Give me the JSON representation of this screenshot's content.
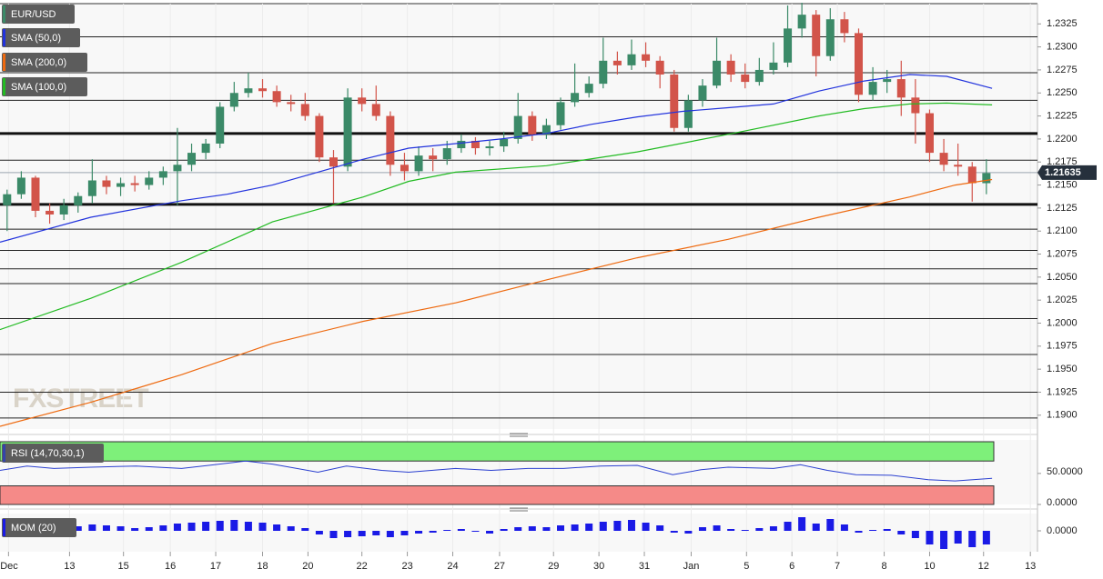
{
  "chart_data": {
    "type": "candlestick",
    "title": "EUR/USD",
    "watermark": "FXSTREET",
    "xlim": [
      -0.5,
      72.6
    ],
    "xticks": [
      {
        "value": 0.1,
        "label": "Dec"
      },
      {
        "value": 4.4,
        "label": "13"
      },
      {
        "value": 8.2,
        "label": "15"
      },
      {
        "value": 11.5,
        "label": "16"
      },
      {
        "value": 14.7,
        "label": "17"
      },
      {
        "value": 18.0,
        "label": "18"
      },
      {
        "value": 21.2,
        "label": "20"
      },
      {
        "value": 25.0,
        "label": "22"
      },
      {
        "value": 28.2,
        "label": "23"
      },
      {
        "value": 31.4,
        "label": "24"
      },
      {
        "value": 34.7,
        "label": "27"
      },
      {
        "value": 38.5,
        "label": "29"
      },
      {
        "value": 41.7,
        "label": "30"
      },
      {
        "value": 44.9,
        "label": "31"
      },
      {
        "value": 48.2,
        "label": "Jan"
      },
      {
        "value": 52.1,
        "label": "5"
      },
      {
        "value": 55.3,
        "label": "6"
      },
      {
        "value": 58.5,
        "label": "7"
      },
      {
        "value": 61.8,
        "label": "8"
      },
      {
        "value": 65.0,
        "label": "10"
      },
      {
        "value": 68.8,
        "label": "12"
      },
      {
        "value": 72.1,
        "label": "13"
      }
    ],
    "ylim": [
      1.1885,
      1.2347
    ],
    "yticks": [
      1.2325,
      {
        "value": 1.23,
        "label": "1.2300"
      },
      1.2275,
      {
        "value": 1.225,
        "label": "1.2250"
      },
      1.2225,
      {
        "value": 1.22,
        "label": "1.2200"
      },
      1.2175,
      {
        "value": 1.215,
        "label": "1.2150"
      },
      1.2125,
      {
        "value": 1.21,
        "label": "1.2100"
      },
      1.2075,
      {
        "value": 1.205,
        "label": "1.2050"
      },
      1.2025,
      {
        "value": 1.2,
        "label": "1.2000"
      },
      1.1975,
      {
        "value": 1.195,
        "label": "1.1950"
      },
      1.1925,
      {
        "value": 1.19,
        "label": "1.1900"
      }
    ],
    "up_color": "#3b8a68",
    "down_color": "#d2544a",
    "candles": [
      [
        1.2128,
        1.2145,
        1.21,
        1.214
      ],
      [
        1.214,
        1.2165,
        1.2135,
        1.2158
      ],
      [
        1.2158,
        1.216,
        1.2115,
        1.2122
      ],
      [
        1.2122,
        1.213,
        1.2108,
        1.2118
      ],
      [
        1.2118,
        1.2135,
        1.2112,
        1.2128
      ],
      [
        1.2128,
        1.2142,
        1.212,
        1.2138
      ],
      [
        1.2138,
        1.2178,
        1.213,
        1.2155
      ],
      [
        1.2155,
        1.216,
        1.214,
        1.2148
      ],
      [
        1.2148,
        1.2158,
        1.2138,
        1.2152
      ],
      [
        1.2152,
        1.216,
        1.2143,
        1.215
      ],
      [
        1.215,
        1.2165,
        1.2145,
        1.2158
      ],
      [
        1.2158,
        1.217,
        1.215,
        1.2165
      ],
      [
        1.2165,
        1.2212,
        1.2128,
        1.2172
      ],
      [
        1.2172,
        1.2195,
        1.2165,
        1.2185
      ],
      [
        1.2185,
        1.22,
        1.2178,
        1.2195
      ],
      [
        1.2195,
        1.224,
        1.219,
        1.2235
      ],
      [
        1.2235,
        1.2262,
        1.223,
        1.225
      ],
      [
        1.225,
        1.2272,
        1.2245,
        1.2255
      ],
      [
        1.2255,
        1.2265,
        1.2245,
        1.2252
      ],
      [
        1.2252,
        1.2258,
        1.2235,
        1.224
      ],
      [
        1.224,
        1.2248,
        1.223,
        1.2238
      ],
      [
        1.2238,
        1.225,
        1.222,
        1.2225
      ],
      [
        1.2225,
        1.2228,
        1.2175,
        1.218
      ],
      [
        1.218,
        1.2188,
        1.213,
        1.217
      ],
      [
        1.217,
        1.2255,
        1.2165,
        1.2245
      ],
      [
        1.2245,
        1.2255,
        1.223,
        1.2238
      ],
      [
        1.2238,
        1.2258,
        1.222,
        1.2225
      ],
      [
        1.2225,
        1.223,
        1.216,
        1.2172
      ],
      [
        1.2172,
        1.2185,
        1.2155,
        1.2165
      ],
      [
        1.2165,
        1.2192,
        1.216,
        1.2182
      ],
      [
        1.2182,
        1.219,
        1.2165,
        1.2178
      ],
      [
        1.2178,
        1.2198,
        1.2172,
        1.219
      ],
      [
        1.219,
        1.2205,
        1.2185,
        1.2198
      ],
      [
        1.2198,
        1.2202,
        1.2183,
        1.219
      ],
      [
        1.219,
        1.2198,
        1.2182,
        1.2192
      ],
      [
        1.2192,
        1.2208,
        1.2186,
        1.22
      ],
      [
        1.22,
        1.225,
        1.2195,
        1.2225
      ],
      [
        1.2225,
        1.223,
        1.2198,
        1.2205
      ],
      [
        1.2205,
        1.2222,
        1.22,
        1.2215
      ],
      [
        1.2215,
        1.2245,
        1.221,
        1.224
      ],
      [
        1.224,
        1.2282,
        1.2235,
        1.225
      ],
      [
        1.225,
        1.2268,
        1.2245,
        1.226
      ],
      [
        1.226,
        1.231,
        1.2255,
        1.2285
      ],
      [
        1.2285,
        1.2295,
        1.227,
        1.228
      ],
      [
        1.228,
        1.2308,
        1.2275,
        1.2292
      ],
      [
        1.2292,
        1.2305,
        1.2278,
        1.2285
      ],
      [
        1.2285,
        1.229,
        1.2255,
        1.227
      ],
      [
        1.227,
        1.2275,
        1.2208,
        1.2212
      ],
      [
        1.2212,
        1.2248,
        1.2208,
        1.2242
      ],
      [
        1.2242,
        1.2265,
        1.2235,
        1.2258
      ],
      [
        1.2258,
        1.231,
        1.2255,
        1.2285
      ],
      [
        1.2285,
        1.2292,
        1.2262,
        1.227
      ],
      [
        1.227,
        1.2282,
        1.2255,
        1.2262
      ],
      [
        1.2262,
        1.2288,
        1.2258,
        1.2275
      ],
      [
        1.2275,
        1.2305,
        1.227,
        1.2283
      ],
      [
        1.2283,
        1.2345,
        1.2278,
        1.232
      ],
      [
        1.232,
        1.2348,
        1.231,
        1.2335
      ],
      [
        1.2335,
        1.234,
        1.2268,
        1.229
      ],
      [
        1.229,
        1.2342,
        1.2285,
        1.233
      ],
      [
        1.233,
        1.2338,
        1.2305,
        1.2315
      ],
      [
        1.2315,
        1.232,
        1.224,
        1.2248
      ],
      [
        1.2248,
        1.2278,
        1.2242,
        1.2262
      ],
      [
        1.2262,
        1.2275,
        1.225,
        1.2265
      ],
      [
        1.2265,
        1.2285,
        1.2225,
        1.2245
      ],
      [
        1.2245,
        1.2265,
        1.2195,
        1.2228
      ],
      [
        1.2228,
        1.2232,
        1.2175,
        1.2185
      ],
      [
        1.2185,
        1.22,
        1.2165,
        1.2172
      ],
      [
        1.2172,
        1.2195,
        1.216,
        1.217
      ],
      [
        1.217,
        1.2175,
        1.2132,
        1.2152
      ],
      [
        1.2152,
        1.2178,
        1.214,
        1.2163
      ]
    ],
    "last": 1.21635,
    "levels": [
      1.2311,
      1.2272,
      1.2242,
      1.2177,
      1.2102,
      1.2079,
      1.2059,
      1.2043,
      1.2005,
      1.1966,
      1.1925,
      1.1897
    ],
    "strong_levels": [
      1.2206,
      1.2129
    ],
    "series": [
      {
        "name": "SMA (50,0)",
        "color": "#2233dd",
        "x": [
          -0.5,
          5.9,
          12.3,
          15.5,
          18.7,
          21.9,
          25.1,
          28.3,
          31.6,
          34.8,
          38,
          41.2,
          44.4,
          47.6,
          50.8,
          54,
          57.2,
          60.4,
          63.6,
          66.2,
          69.4
        ],
        "values": [
          1.2088,
          1.2115,
          1.2133,
          1.214,
          1.215,
          1.2164,
          1.2178,
          1.219,
          1.2195,
          1.22,
          1.2206,
          1.2216,
          1.2224,
          1.223,
          1.2234,
          1.2238,
          1.2252,
          1.2263,
          1.227,
          1.2268,
          1.2255
        ]
      },
      {
        "name": "SMA (200,0)",
        "color": "#ee6a10",
        "x": [
          -0.5,
          5.9,
          12.3,
          18.7,
          25.1,
          31.6,
          38,
          44.4,
          50.8,
          57.2,
          63.6,
          66.8,
          69.4
        ],
        "values": [
          1.1888,
          1.1914,
          1.1944,
          1.1978,
          1.2002,
          1.2022,
          1.2047,
          1.2071,
          1.2091,
          1.2115,
          1.2137,
          1.215,
          1.2156
        ]
      },
      {
        "name": "SMA (100,0)",
        "color": "#22bb22",
        "x": [
          -0.5,
          5.9,
          12.3,
          18.7,
          25.1,
          28.3,
          31.6,
          38,
          44.4,
          50.8,
          57.2,
          60.4,
          63.6,
          66.2,
          69.4
        ],
        "values": [
          1.1993,
          1.2027,
          1.2066,
          1.211,
          1.2137,
          1.2154,
          1.2164,
          1.2171,
          1.2186,
          1.2205,
          1.2225,
          1.2233,
          1.2238,
          1.2239,
          1.2237
        ]
      }
    ],
    "rsi": {
      "name": "RSI (14,70,30,1)",
      "color": "#2a3fd0",
      "ylim": [
        0,
        104
      ],
      "yticks": [
        {
          "value": 50,
          "label": "50.0000"
        },
        {
          "value": 0,
          "label": "0.0000"
        }
      ],
      "bands": [
        30,
        70
      ],
      "x": [
        -0.5,
        1.4,
        3.3,
        5.9,
        9.1,
        12.3,
        14.2,
        16.8,
        18.7,
        21.9,
        23.9,
        26.4,
        28.3,
        31.6,
        34.1,
        36.7,
        39.2,
        41.8,
        44.4,
        46.9,
        48.9,
        50.8,
        54,
        55.9,
        57.8,
        59.8,
        62.3,
        64.9,
        66.8,
        69.4
      ],
      "values": [
        55,
        62,
        58,
        60,
        62,
        58,
        63,
        70,
        65,
        52,
        62,
        55,
        52,
        58,
        55,
        58,
        58,
        62,
        63,
        48,
        56,
        60,
        58,
        64,
        55,
        48,
        47,
        40,
        38,
        42
      ]
    },
    "mom": {
      "name": "MOM (20)",
      "color": "#1a1ae6",
      "ylim": [
        -0.0046,
        0.0038
      ],
      "yticks": [
        {
          "value": 0,
          "label": "0.0000"
        }
      ],
      "values": [
        0.0004,
        0.0008,
        0.0002,
        -0.0004,
        0.0006,
        0.001,
        0.0014,
        0.0012,
        0.001,
        0.0006,
        0.0008,
        0.0012,
        0.0016,
        0.0018,
        0.002,
        0.0022,
        0.0024,
        0.002,
        0.0018,
        0.0014,
        0.001,
        0.0006,
        -0.0008,
        -0.0016,
        -0.0014,
        -0.0012,
        -0.001,
        -0.0014,
        -0.001,
        -0.0006,
        -0.0004,
        0.0002,
        0.0004,
        -0.0002,
        -0.0006,
        0.0004,
        0.0008,
        0.001,
        0.0008,
        0.0012,
        0.0014,
        0.0016,
        0.002,
        0.0022,
        0.0024,
        0.0018,
        0.0012,
        -0.0004,
        -0.0006,
        0.0008,
        0.0012,
        0.0004,
        0.0002,
        0.0006,
        0.001,
        0.002,
        0.003,
        0.0016,
        0.0026,
        0.0014,
        -0.0004,
        0.0002,
        0.0004,
        -0.0008,
        -0.0016,
        -0.003,
        -0.004,
        -0.0028,
        -0.0036,
        -0.003
      ]
    }
  }
}
